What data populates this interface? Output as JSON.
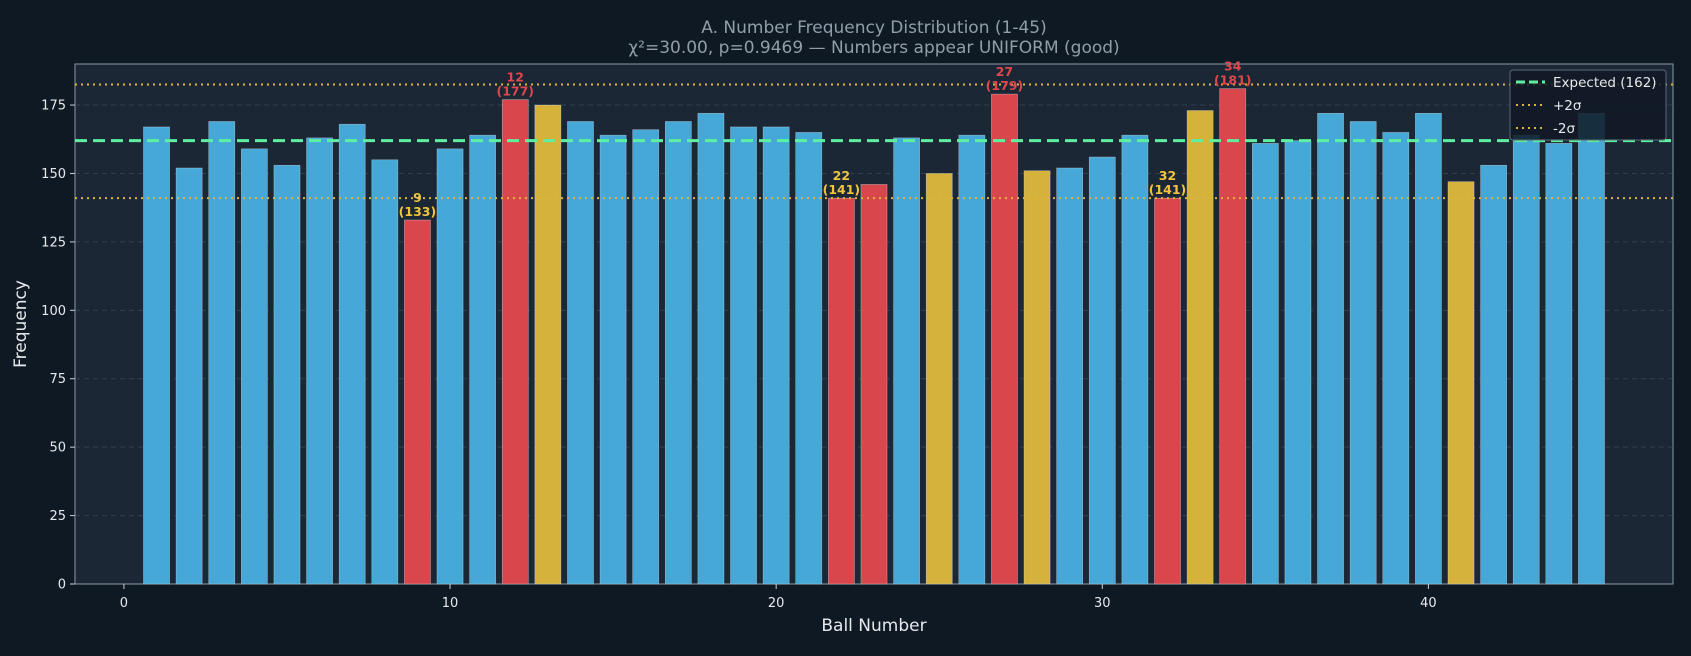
{
  "chart_data": {
    "type": "bar",
    "title": "A. Number Frequency Distribution (1-45)",
    "subtitle": "χ²=30.00, p=0.9469 — Numbers appear UNIFORM (good)",
    "xlabel": "Ball Number",
    "ylabel": "Frequency",
    "xlim": [
      -1.5,
      47.5
    ],
    "ylim": [
      0,
      190
    ],
    "xticks": [
      0,
      10,
      20,
      30,
      40
    ],
    "yticks": [
      0,
      25,
      50,
      75,
      100,
      125,
      150,
      175
    ],
    "grid": "horizontal dashed",
    "categories": [
      1,
      2,
      3,
      4,
      5,
      6,
      7,
      8,
      9,
      10,
      11,
      12,
      13,
      14,
      15,
      16,
      17,
      18,
      19,
      20,
      21,
      22,
      23,
      24,
      25,
      26,
      27,
      28,
      29,
      30,
      31,
      32,
      33,
      34,
      35,
      36,
      37,
      38,
      39,
      40,
      41,
      42,
      43,
      44,
      45
    ],
    "values": [
      167,
      152,
      169,
      159,
      153,
      163,
      168,
      155,
      133,
      159,
      164,
      177,
      175,
      169,
      164,
      166,
      169,
      172,
      167,
      167,
      165,
      141,
      146,
      163,
      150,
      164,
      179,
      151,
      152,
      156,
      164,
      141,
      173,
      181,
      161,
      162,
      172,
      169,
      165,
      172,
      147,
      153,
      164,
      161,
      172
    ],
    "status": [
      "normal",
      "normal",
      "normal",
      "normal",
      "normal",
      "normal",
      "normal",
      "normal",
      "low",
      "normal",
      "normal",
      "high",
      "warn",
      "normal",
      "normal",
      "normal",
      "normal",
      "normal",
      "normal",
      "normal",
      "normal",
      "low",
      "low",
      "normal",
      "warn",
      "normal",
      "high",
      "warn",
      "normal",
      "normal",
      "normal",
      "low",
      "warn",
      "high",
      "normal",
      "normal",
      "normal",
      "normal",
      "normal",
      "normal",
      "warn",
      "normal",
      "normal",
      "normal",
      "normal"
    ],
    "expected": 162,
    "plus_2sigma": 182.5,
    "minus_2sigma": 141,
    "annotations": [
      {
        "number": 9,
        "value": 133,
        "label_num": "9",
        "label_val": "(133)",
        "color": "#f0c43c"
      },
      {
        "number": 12,
        "value": 177,
        "label_num": "12",
        "label_val": "(177)",
        "color": "#e0474c"
      },
      {
        "number": 22,
        "value": 141,
        "label_num": "22",
        "label_val": "(141)",
        "color": "#f0c43c"
      },
      {
        "number": 27,
        "value": 179,
        "label_num": "27",
        "label_val": "(179)",
        "color": "#e0474c"
      },
      {
        "number": 32,
        "value": 141,
        "label_num": "32",
        "label_val": "(141)",
        "color": "#f0c43c"
      },
      {
        "number": 34,
        "value": 181,
        "label_num": "34",
        "label_val": "(181)",
        "color": "#e0474c"
      }
    ],
    "legend": {
      "placement": "top-right",
      "items": [
        {
          "label": "Expected (162)",
          "style": "dashed",
          "color": "#5ef0a0"
        },
        {
          "label": "+2σ",
          "style": "dotted",
          "color": "#e0b43a"
        },
        {
          "label": "-2σ",
          "style": "dotted",
          "color": "#e0b43a"
        }
      ]
    },
    "colors": {
      "normal": "#45a8d6",
      "warn": "#d4b23c",
      "low": "#d9464b",
      "high": "#d9464b",
      "plot_bg": "#1c2736",
      "page_bg": "#0f1923",
      "grid": "#3a4a5c",
      "expected_line": "#5ef0a0",
      "sigma_line": "#e0b43a"
    }
  }
}
